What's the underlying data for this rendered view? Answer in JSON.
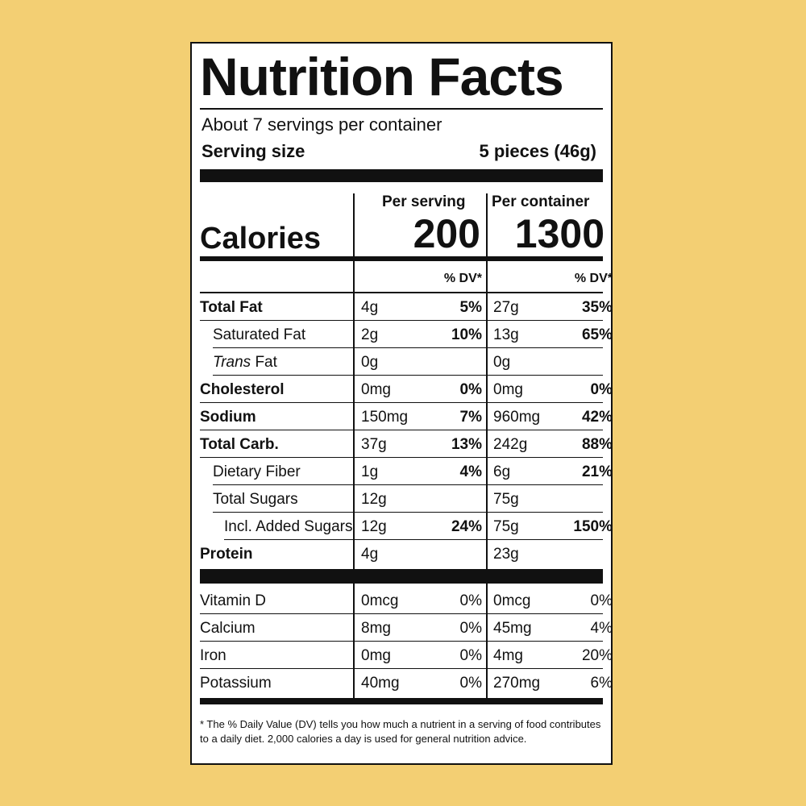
{
  "title": "Nutrition Facts",
  "servings_per_container": "About 7 servings per container",
  "serving_size_label": "Serving size",
  "serving_size_value": "5 pieces (46g)",
  "calories_label": "Calories",
  "per_serving_label": "Per serving",
  "per_container_label": "Per container",
  "calories_per_serving": "200",
  "calories_per_container": "1300",
  "dv_header": "% DV*",
  "nutrients": [
    {
      "name": "Total Fat",
      "bold": true,
      "indent": 0,
      "sv_amt": "4g",
      "sv_dv": "5%",
      "pc_amt": "27g",
      "pc_dv": "35%"
    },
    {
      "name": "Saturated Fat",
      "bold": false,
      "indent": 1,
      "sv_amt": "2g",
      "sv_dv": "10%",
      "pc_amt": "13g",
      "pc_dv": "65%"
    },
    {
      "name_prefix": "Trans",
      "name": " Fat",
      "bold": false,
      "indent": 1,
      "sv_amt": "0g",
      "sv_dv": "",
      "pc_amt": "0g",
      "pc_dv": ""
    },
    {
      "name": "Cholesterol",
      "bold": true,
      "indent": 0,
      "sv_amt": "0mg",
      "sv_dv": "0%",
      "pc_amt": "0mg",
      "pc_dv": "0%"
    },
    {
      "name": "Sodium",
      "bold": true,
      "indent": 0,
      "sv_amt": "150mg",
      "sv_dv": "7%",
      "pc_amt": "960mg",
      "pc_dv": "42%"
    },
    {
      "name": "Total Carb.",
      "bold": true,
      "indent": 0,
      "sv_amt": "37g",
      "sv_dv": "13%",
      "pc_amt": "242g",
      "pc_dv": "88%"
    },
    {
      "name": "Dietary Fiber",
      "bold": false,
      "indent": 1,
      "sv_amt": "1g",
      "sv_dv": "4%",
      "pc_amt": "6g",
      "pc_dv": "21%"
    },
    {
      "name": "Total Sugars",
      "bold": false,
      "indent": 1,
      "sv_amt": "12g",
      "sv_dv": "",
      "pc_amt": "75g",
      "pc_dv": ""
    },
    {
      "name": "Incl. Added Sugars",
      "bold": false,
      "indent": 2,
      "sv_amt": "12g",
      "sv_dv": "24%",
      "pc_amt": "75g",
      "pc_dv": "150%"
    },
    {
      "name": "Protein",
      "bold": true,
      "indent": 0,
      "sv_amt": "4g",
      "sv_dv": "",
      "pc_amt": "23g",
      "pc_dv": ""
    }
  ],
  "vitamins": [
    {
      "name": "Vitamin D",
      "sv_amt": "0mcg",
      "sv_dv": "0%",
      "pc_amt": "0mcg",
      "pc_dv": "0%"
    },
    {
      "name": "Calcium",
      "sv_amt": "8mg",
      "sv_dv": "0%",
      "pc_amt": "45mg",
      "pc_dv": "4%"
    },
    {
      "name": "Iron",
      "sv_amt": "0mg",
      "sv_dv": "0%",
      "pc_amt": "4mg",
      "pc_dv": "20%"
    },
    {
      "name": "Potassium",
      "sv_amt": "40mg",
      "sv_dv": "0%",
      "pc_amt": "270mg",
      "pc_dv": "6%"
    }
  ],
  "footnote": "* The % Daily Value (DV) tells you how much a nutrient in a serving of food contributes to a daily diet. 2,000 calories a day is used for general nutrition advice.",
  "colors": {
    "background": "#f3cf73",
    "label": "#ffffff",
    "ink": "#111111"
  }
}
